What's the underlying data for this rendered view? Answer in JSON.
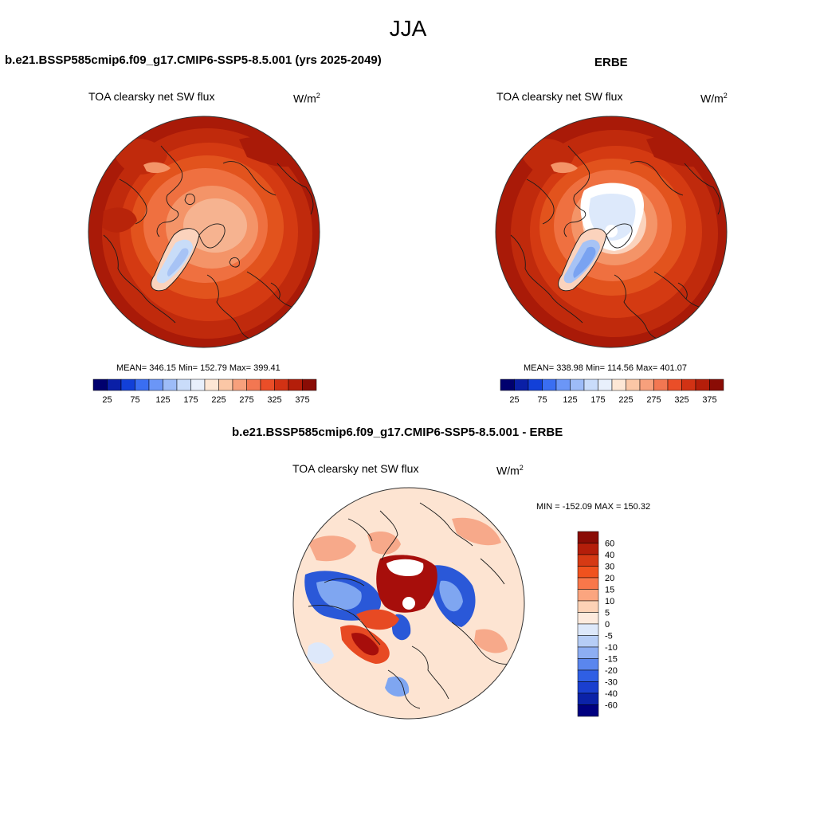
{
  "season": "JJA",
  "panels": [
    {
      "id": "model",
      "title": "b.e21.BSSP585cmip6.f09_g17.CMIP6-SSP5-8.5.001 (yrs 2025-2049)",
      "variable": "TOA clearsky net SW flux",
      "units_base": "W/m",
      "units_exp": "2",
      "stats": "MEAN= 346.15  Min= 152.79  Max= 399.41"
    },
    {
      "id": "obs",
      "title": "ERBE",
      "variable": "TOA clearsky net SW flux",
      "units_base": "W/m",
      "units_exp": "2",
      "stats": "MEAN= 338.98  Min= 114.56  Max= 401.07"
    },
    {
      "id": "diff",
      "title": "b.e21.BSSP585cmip6.f09_g17.CMIP6-SSP5-8.5.001 - ERBE",
      "variable": "TOA clearsky net SW flux",
      "units_base": "W/m",
      "units_exp": "2",
      "stats": "MIN = -152.09 MAX = 150.32"
    }
  ],
  "colorbar_main": {
    "colors": [
      "#00006e",
      "#0a1fa6",
      "#1240d8",
      "#3a6ef2",
      "#6b96f7",
      "#9dbcf8",
      "#c9dcfa",
      "#e8f0fc",
      "#fde7d5",
      "#fbc7a6",
      "#f7a07c",
      "#f27752",
      "#ea4e28",
      "#d23214",
      "#b41e0a",
      "#8a0c05"
    ],
    "tick_labels": [
      "25",
      "75",
      "125",
      "175",
      "225",
      "275",
      "325",
      "375"
    ]
  },
  "colorbar_diff": {
    "colors_top_to_bottom": [
      "#8a0c05",
      "#b41e0a",
      "#d63a14",
      "#f0521e",
      "#f8774a",
      "#fba57f",
      "#fdd2b6",
      "#fdeadd",
      "#dde8fa",
      "#b6cdf6",
      "#8daef3",
      "#5a86ee",
      "#2f5fe4",
      "#1a3fcf",
      "#0b22a8",
      "#000080"
    ],
    "tick_labels": [
      "60",
      "40",
      "30",
      "20",
      "15",
      "10",
      "5",
      "0",
      "-5",
      "-10",
      "-15",
      "-20",
      "-30",
      "-40",
      "-60"
    ]
  },
  "map_colors": {
    "model_fill": [
      "#a91a08",
      "#c02a0c",
      "#d43a12",
      "#e2531d",
      "#ef7040",
      "#f49468",
      "#f6b390",
      "#fbd3bd",
      "#c8dcf8",
      "#a7c3f5"
    ],
    "obs_fill": [
      "#a91a08",
      "#c02a0c",
      "#d43a12",
      "#e2531d",
      "#ef7040",
      "#f49468",
      "#fbd3bd",
      "#dde9fb",
      "#7aa3f1",
      "#ffffff"
    ],
    "diff_fill": [
      "#fde4d2",
      "#f7a98a",
      "#e74a23",
      "#a70e0b",
      "#dde8fa",
      "#7fa6f1",
      "#2a58d8",
      "#ffffff"
    ],
    "coastline": "#1a1a1a"
  }
}
